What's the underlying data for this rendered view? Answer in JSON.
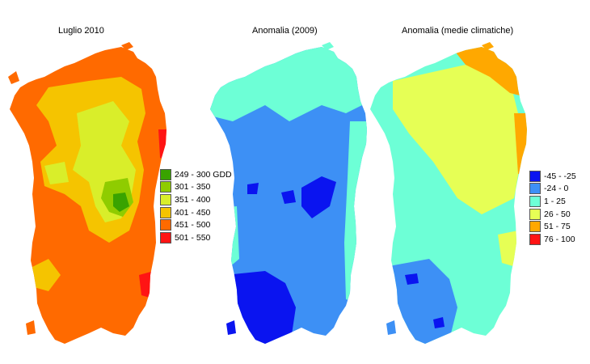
{
  "panels": [
    {
      "title": "Luglio 2010",
      "base_color": "#ff6a00",
      "legend": [
        {
          "label": "249 - 300 GDD",
          "color": "#39a300"
        },
        {
          "label": "301 - 350",
          "color": "#8fcc00"
        },
        {
          "label": "351 - 400",
          "color": "#d9ee2a"
        },
        {
          "label": "401 - 450",
          "color": "#f5c400"
        },
        {
          "label": "451 - 500",
          "color": "#ff6a00"
        },
        {
          "label": "501 - 550",
          "color": "#ff1414"
        }
      ]
    },
    {
      "title": "Anomalia (2009)",
      "base_color": "#3d90f5",
      "legend": []
    },
    {
      "title": "Anomalia (medie climatiche)",
      "base_color": "#6dffd6",
      "legend": [
        {
          "label": "-45 - -25",
          "color": "#0a14f0"
        },
        {
          "label": "-24 - 0",
          "color": "#3d90f5"
        },
        {
          "label": "1 - 25",
          "color": "#6dffd6"
        },
        {
          "label": "26 - 50",
          "color": "#e6ff55"
        },
        {
          "label": "51 - 75",
          "color": "#ffa800"
        },
        {
          "label": "76 - 100",
          "color": "#ff1414"
        }
      ]
    }
  ]
}
